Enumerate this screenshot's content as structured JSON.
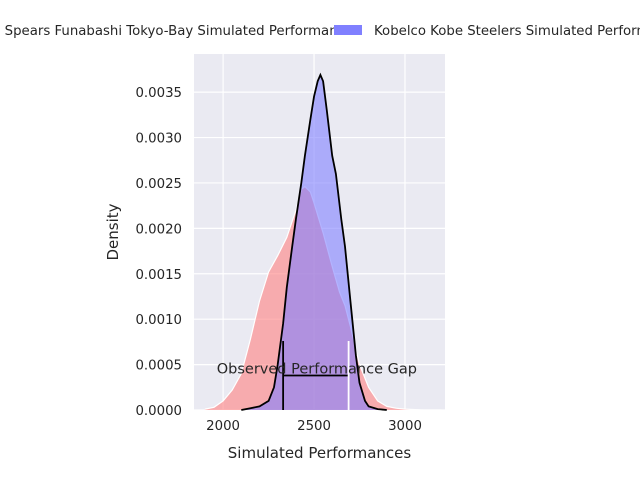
{
  "chart_data": {
    "type": "area",
    "xlabel": "Simulated Performances",
    "ylabel": "Density",
    "xlim": [
      1840,
      3220
    ],
    "ylim": [
      0,
      0.00392
    ],
    "xticks": [
      2000,
      2500,
      3000
    ],
    "xtick_labels": [
      "2000",
      "2500",
      "3000"
    ],
    "yticks": [
      0,
      0.0005,
      0.001,
      0.0015,
      0.002,
      0.0025,
      0.003,
      0.0035
    ],
    "ytick_labels": [
      "0.0000",
      "0.0005",
      "0.0010",
      "0.0015",
      "0.0020",
      "0.0025",
      "0.0030",
      "0.0035"
    ],
    "grid": true,
    "legend_position": "top",
    "series": [
      {
        "name": "Kubota Spears Funabashi Tokyo-Bay Simulated Performances",
        "color": "#ff8080",
        "x": [
          1900,
          1950,
          2000,
          2050,
          2100,
          2150,
          2200,
          2250,
          2300,
          2350,
          2400,
          2430,
          2450,
          2480,
          2500,
          2550,
          2600,
          2640,
          2650,
          2670,
          2700,
          2750,
          2800,
          2850,
          2900,
          2950,
          3000,
          3100,
          3200
        ],
        "y": [
          1e-05,
          3e-05,
          0.0001,
          0.00022,
          0.0004,
          0.00078,
          0.0012,
          0.00152,
          0.0017,
          0.0019,
          0.0022,
          0.00243,
          0.00246,
          0.0024,
          0.00228,
          0.00195,
          0.00158,
          0.0013,
          0.00125,
          0.00115,
          0.00092,
          0.0005,
          0.00025,
          0.0001,
          4e-05,
          2e-05,
          1e-05,
          0.0,
          0.0
        ]
      },
      {
        "name": "Kobelco Kobe Steelers Simulated Performances",
        "color": "#8080ff",
        "x": [
          2100,
          2150,
          2200,
          2250,
          2280,
          2300,
          2330,
          2350,
          2380,
          2400,
          2430,
          2450,
          2480,
          2500,
          2520,
          2535,
          2550,
          2570,
          2600,
          2620,
          2650,
          2670,
          2700,
          2730,
          2750,
          2780,
          2800,
          2850,
          2900
        ],
        "y": [
          0.0,
          2e-05,
          4e-05,
          0.0001,
          0.00025,
          0.0005,
          0.00095,
          0.00135,
          0.0018,
          0.0021,
          0.0025,
          0.0028,
          0.0032,
          0.00345,
          0.00362,
          0.00369,
          0.00362,
          0.0033,
          0.0028,
          0.0026,
          0.0021,
          0.0018,
          0.0012,
          0.0006,
          0.0003,
          0.0001,
          4e-05,
          1e-05,
          0.0
        ]
      }
    ],
    "annotations": [
      {
        "text": "Observed Performance Gap",
        "x_from": 2330,
        "x_to": 2690,
        "y": 0.00038
      }
    ]
  }
}
